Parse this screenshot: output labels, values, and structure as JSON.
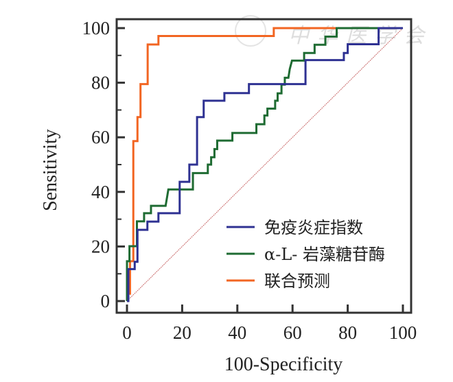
{
  "chart_data": {
    "type": "line",
    "title": "",
    "xlabel": "100-Specificity",
    "ylabel": "Sensitivity",
    "xlim": [
      0,
      100
    ],
    "ylim": [
      0,
      100
    ],
    "xticks": [
      "0",
      "20",
      "40",
      "60",
      "80",
      "100"
    ],
    "yticks": [
      "0",
      "20",
      "40",
      "60",
      "80",
      "100"
    ],
    "legend_position": "bottom-right",
    "grid": false,
    "reference_line": {
      "name": "diagonal",
      "color": "#c96a6a",
      "points": [
        [
          0,
          0
        ],
        [
          100,
          100
        ]
      ]
    },
    "series": [
      {
        "name": "免疫炎症指数",
        "color": "#2e3192",
        "points": [
          [
            0,
            0
          ],
          [
            0.5,
            0
          ],
          [
            0.5,
            11.7
          ],
          [
            2.8,
            11.7
          ],
          [
            2.8,
            14.4
          ],
          [
            3.8,
            14.4
          ],
          [
            3.8,
            26.1
          ],
          [
            7.4,
            26.1
          ],
          [
            7.4,
            29.1
          ],
          [
            11.4,
            29.1
          ],
          [
            11.4,
            32.2
          ],
          [
            19.1,
            32.2
          ],
          [
            19.1,
            43.7
          ],
          [
            22.6,
            43.7
          ],
          [
            22.6,
            50
          ],
          [
            25.4,
            50
          ],
          [
            25.4,
            67.4
          ],
          [
            27.8,
            67.4
          ],
          [
            27.8,
            73.4
          ],
          [
            35.3,
            73.4
          ],
          [
            35.3,
            76.2
          ],
          [
            44.2,
            76.2
          ],
          [
            44.2,
            79.5
          ],
          [
            64.7,
            79.5
          ],
          [
            64.7,
            88.3
          ],
          [
            78.6,
            88.3
          ],
          [
            78.6,
            90.9
          ],
          [
            80,
            90.9
          ],
          [
            80,
            94.1
          ],
          [
            91.2,
            94.1
          ],
          [
            91.2,
            100
          ],
          [
            100,
            100
          ]
        ]
      },
      {
        "name": "α-L- 岩藻糖苷酶",
        "color": "#1e6b32",
        "points": [
          [
            0,
            0
          ],
          [
            0,
            3
          ],
          [
            0,
            14.6
          ],
          [
            0.9,
            14.6
          ],
          [
            0.9,
            20.1
          ],
          [
            3.6,
            20.1
          ],
          [
            3.6,
            29.2
          ],
          [
            6.2,
            29.2
          ],
          [
            6.2,
            32.2
          ],
          [
            8.7,
            32.2
          ],
          [
            8.7,
            34.9
          ],
          [
            14,
            34.9
          ],
          [
            15,
            40.9
          ],
          [
            23.9,
            40.9
          ],
          [
            23.9,
            46.9
          ],
          [
            29.3,
            46.9
          ],
          [
            29.3,
            50
          ],
          [
            30.5,
            50
          ],
          [
            30.5,
            52.7
          ],
          [
            31.7,
            52.7
          ],
          [
            31.7,
            55.7
          ],
          [
            32.7,
            55.7
          ],
          [
            32.7,
            58.8
          ],
          [
            38.2,
            58.8
          ],
          [
            38.2,
            61.6
          ],
          [
            46.9,
            61.6
          ],
          [
            46.9,
            64.8
          ],
          [
            49.8,
            64.8
          ],
          [
            49.8,
            68
          ],
          [
            50.9,
            68
          ],
          [
            50.9,
            70.5
          ],
          [
            53.7,
            70.5
          ],
          [
            53.7,
            73.4
          ],
          [
            54.6,
            73.4
          ],
          [
            54.6,
            76.1
          ],
          [
            56,
            76.1
          ],
          [
            56,
            79.3
          ],
          [
            57.2,
            79.3
          ],
          [
            57.2,
            81.8
          ],
          [
            58.5,
            81.8
          ],
          [
            59,
            85
          ],
          [
            59.8,
            88.1
          ],
          [
            64.2,
            88.1
          ],
          [
            64.2,
            90.9
          ],
          [
            68,
            90.9
          ],
          [
            68,
            93.9
          ],
          [
            71.9,
            93.9
          ],
          [
            71.9,
            96.9
          ],
          [
            76,
            96.9
          ],
          [
            76,
            100
          ],
          [
            100,
            100
          ]
        ]
      },
      {
        "name": "联合预测",
        "color": "#f26522",
        "points": [
          [
            0,
            0
          ],
          [
            0.3,
            0
          ],
          [
            0.3,
            2.7
          ],
          [
            1.1,
            2.7
          ],
          [
            1.1,
            14.6
          ],
          [
            2.3,
            14.6
          ],
          [
            2.3,
            58.6
          ],
          [
            3.8,
            58.6
          ],
          [
            3.8,
            67.4
          ],
          [
            4.9,
            67.4
          ],
          [
            4.9,
            79.5
          ],
          [
            7.5,
            79.5
          ],
          [
            7.5,
            94
          ],
          [
            11.4,
            94
          ],
          [
            11.4,
            97.1
          ],
          [
            53.2,
            97.1
          ],
          [
            53.2,
            100
          ],
          [
            100,
            100
          ]
        ]
      }
    ],
    "watermark": "中华医学会"
  }
}
